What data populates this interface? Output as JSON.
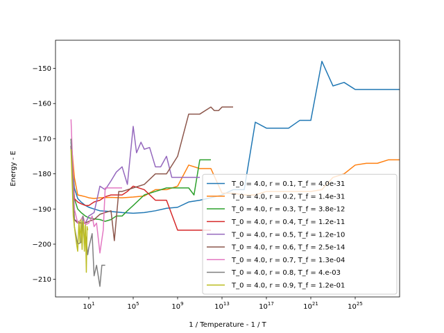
{
  "chart_data": {
    "type": "line",
    "title": "",
    "xlabel": "1 / Temperature - 1 / T",
    "ylabel": "Energy - E",
    "xscale": "log",
    "xlim": [
      0.01,
      1e+29
    ],
    "ylim": [
      -215,
      -142
    ],
    "x_ticks": [
      {
        "value": 10,
        "base": "10",
        "exp": "1"
      },
      {
        "value": 100000,
        "base": "10",
        "exp": "5"
      },
      {
        "value": 1000000000,
        "base": "10",
        "exp": "9"
      },
      {
        "value": 10000000000000.0,
        "base": "10",
        "exp": "13"
      },
      {
        "value": 1e+17,
        "base": "10",
        "exp": "17"
      },
      {
        "value": 1e+21,
        "base": "10",
        "exp": "21"
      },
      {
        "value": 1e+25,
        "base": "10",
        "exp": "25"
      }
    ],
    "y_ticks": [
      -210,
      -200,
      -190,
      -180,
      -170,
      -160,
      -150
    ],
    "y_tick_labels": [
      "−210",
      "−200",
      "−190",
      "−180",
      "−170",
      "−160",
      "−150"
    ],
    "grid": false,
    "legend_position": "lower-right",
    "series": [
      {
        "name": "T_0 = 4.0, r = 0.1, T_f = 4.0e-31",
        "color": "#1f77b4",
        "x": [
          0.25,
          0.5,
          1,
          2,
          5,
          10,
          30,
          100,
          1000,
          10000.0,
          100000.0,
          1000000.0,
          10000000.0,
          100000000.0,
          1000000000.0,
          10000000000.0,
          100000000000.0,
          1000000000000.0,
          10000000000000.0,
          100000000000000.0,
          1000000000000000.0,
          1e+16,
          1e+17,
          1e+18,
          1e+19,
          1e+20,
          1e+21,
          1e+22,
          1e+23,
          1e+24,
          1e+25,
          1e+26,
          1e+27,
          1e+28,
          1e+29
        ],
        "y": [
          -171,
          -184,
          -187,
          -188,
          -189,
          -189.5,
          -190,
          -190.5,
          -190.7,
          -191,
          -191.2,
          -191,
          -190.5,
          -189.8,
          -189.5,
          -188,
          -187.5,
          -186.8,
          -186,
          -184.5,
          -184.5,
          -165.3,
          -167,
          -167,
          -167,
          -164.8,
          -164.8,
          -148,
          -155,
          -154,
          -156,
          -156,
          -156,
          -156,
          -156
        ]
      },
      {
        "name": "T_0 = 4.0, r = 0.2, T_f = 1.4e-31",
        "color": "#ff7f0e",
        "x": [
          0.25,
          0.5,
          1,
          2,
          5,
          10,
          30,
          100,
          1000,
          10000.0,
          100000.0,
          1000000.0,
          10000000.0,
          100000000.0,
          1000000000.0,
          10000000000.0,
          100000000000.0,
          1000000000000.0,
          10000000000000.0,
          100000000000000.0,
          1000000000000000.0,
          1e+16,
          1e+17,
          1e+18,
          1e+19,
          1e+20,
          1e+21,
          1e+22,
          1e+23,
          1e+24,
          1e+25,
          1e+26,
          1e+27,
          1e+28,
          1e+29
        ],
        "y": [
          -170,
          -181,
          -186,
          -186.2,
          -186.5,
          -186.8,
          -187,
          -186.8,
          -186.7,
          -186.8,
          -186.6,
          -186.3,
          -184.5,
          -184.5,
          -183.5,
          -177.5,
          -178.5,
          -178.5,
          -185.5,
          -185.5,
          -186,
          -186,
          -185,
          -185,
          -185,
          -185,
          -185,
          -184.5,
          -181,
          -180,
          -177.5,
          -177,
          -177,
          -176,
          -176
        ]
      },
      {
        "name": "T_0 = 4.0, r = 0.3, T_f = 3.8e-12",
        "color": "#2ca02c",
        "x": [
          0.25,
          0.5,
          1,
          2,
          5,
          10,
          30,
          100,
          300,
          1000,
          3000,
          10000.0,
          30000.0,
          100000.0,
          1000000.0,
          10000000.0,
          100000000.0,
          1000000000.0,
          10000000000.0,
          30000000000.0,
          100000000000.0,
          300000000000.0,
          1000000000000.0
        ],
        "y": [
          -170,
          -187,
          -190,
          -191,
          -192,
          -192.5,
          -192.8,
          -193,
          -193.5,
          -193,
          -192,
          -192,
          -190.5,
          -189,
          -186,
          -185,
          -184,
          -184,
          -184,
          -186,
          -176,
          -176,
          -176
        ]
      },
      {
        "name": "T_0 = 4.0, r = 0.4, T_f = 1.2e-11",
        "color": "#d62728",
        "x": [
          0.25,
          0.5,
          1,
          2,
          5,
          10,
          30,
          100,
          300,
          1000,
          3000,
          10000.0,
          30000.0,
          100000.0,
          1000000.0,
          10000000.0,
          100000000.0,
          1000000000.0,
          10000000000.0,
          100000000000.0,
          1000000000000.0
        ],
        "y": [
          -172,
          -187,
          -188,
          -188.5,
          -189,
          -189,
          -188,
          -187.5,
          -186.5,
          -186,
          -186,
          -186,
          -185,
          -183.5,
          -184.5,
          -187.5,
          -187.5,
          -196,
          -196,
          -196,
          -196
        ]
      },
      {
        "name": "T_0 = 4.0, r = 0.5, T_f = 1.2e-10",
        "color": "#9467bd",
        "x": [
          0.25,
          0.5,
          1,
          2,
          5,
          10,
          30,
          100,
          300,
          1000,
          3000,
          10000.0,
          30000.0,
          100000.0,
          200000.0,
          500000.0,
          1000000.0,
          3000000.0,
          10000000.0,
          30000000.0,
          100000000.0,
          300000000.0,
          1000000000.0,
          3000000000.0,
          10000000000.0,
          30000000000.0,
          100000000000.0
        ],
        "y": [
          -172,
          -193,
          -193.5,
          -194,
          -194,
          -192,
          -191,
          -183.5,
          -184.5,
          -182,
          -179.5,
          -178,
          -183,
          -166.5,
          -174,
          -171,
          -173,
          -172.5,
          -178,
          -178,
          -175,
          -181,
          -181,
          -181,
          -181,
          -181,
          -181
        ]
      },
      {
        "name": "T_0 = 4.0, r = 0.6, T_f = 2.5e-14",
        "color": "#8c564b",
        "x": [
          0.25,
          0.5,
          1,
          2,
          5,
          10,
          30,
          100,
          300,
          1000,
          2000,
          5000,
          10000.0,
          100000.0,
          1000000.0,
          10000000.0,
          100000000.0,
          1000000000.0,
          10000000000.0,
          100000000000.0,
          1000000000000.0,
          2000000000000.0,
          5000000000000.0,
          10000000000000.0,
          100000000000000.0
        ],
        "y": [
          -172,
          -193,
          -194,
          -194,
          -194,
          -193.5,
          -193,
          -191.5,
          -191,
          -190.5,
          -199,
          -185,
          -185,
          -184,
          -183,
          -180,
          -180,
          -175,
          -163,
          -163,
          -161,
          -162,
          -162,
          -161,
          -161
        ]
      },
      {
        "name": "T_0 = 4.0, r = 0.7, T_f = 1.3e-04",
        "color": "#e377c2",
        "x": [
          0.25,
          0.5,
          1,
          2,
          3,
          5,
          10,
          20,
          30,
          50,
          100,
          200,
          300,
          1000,
          3000,
          10000.0
        ],
        "y": [
          -164.5,
          -190,
          -194,
          -193,
          -192,
          -194.5,
          -194,
          -192,
          -195,
          -194,
          -202.5,
          -196,
          -184,
          -184,
          -184,
          -184
        ]
      },
      {
        "name": "T_0 = 4.0, r = 0.8, T_f = 4.e-03",
        "color": "#7f7f7f",
        "x": [
          0.25,
          0.5,
          1,
          2,
          3,
          4,
          5,
          6,
          8,
          10,
          20,
          30,
          50,
          100,
          150,
          200,
          300
        ],
        "y": [
          -170,
          -195,
          -200,
          -199.5,
          -192,
          -200,
          -197.5,
          -199,
          -203,
          -201,
          -197,
          -209,
          -206,
          -212,
          -206,
          -206,
          -206
        ]
      },
      {
        "name": "T_0 = 4.0, r = 0.9, T_f = 1.2e-01",
        "color": "#bcbd22",
        "x": [
          0.25,
          0.4,
          0.6,
          0.8,
          1,
          1.3,
          1.6,
          2,
          2.5,
          3,
          3.5,
          4,
          5,
          6,
          7,
          8
        ],
        "y": [
          -173,
          -192,
          -197,
          -200,
          -202,
          -193.5,
          -199.5,
          -193,
          -201.5,
          -193.5,
          -195,
          -202,
          -194.5,
          -208,
          -195,
          -196
        ]
      }
    ]
  }
}
